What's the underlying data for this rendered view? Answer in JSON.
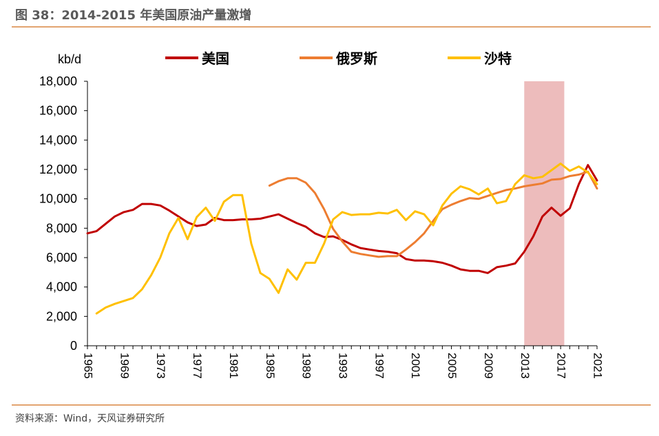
{
  "title": "图 38：2014-2015 年美国原油产量激增",
  "source": "资料来源：Wind，天风证券研究所",
  "chart_data": {
    "type": "line",
    "ylabel": "kb/d",
    "ylim": [
      0,
      18000
    ],
    "yticks": [
      0,
      2000,
      4000,
      6000,
      8000,
      10000,
      12000,
      14000,
      16000,
      18000
    ],
    "ytick_labels": [
      "0",
      "2,000",
      "4,000",
      "6,000",
      "8,000",
      "10,000",
      "12,000",
      "14,000",
      "16,000",
      "18,000"
    ],
    "xlim": [
      1965,
      2021
    ],
    "xticks": [
      1965,
      1969,
      1973,
      1977,
      1981,
      1985,
      1989,
      1993,
      1997,
      2001,
      2005,
      2009,
      2013,
      2017,
      2021
    ],
    "xtick_labels": [
      "1965",
      "1969",
      "1973",
      "1977",
      "1981",
      "1985",
      "1989",
      "1993",
      "1997",
      "2001",
      "2005",
      "2009",
      "2013",
      "2017",
      "2021"
    ],
    "shaded_range": [
      2013,
      2017.4
    ],
    "shade_color": "#EDBCBC",
    "series": [
      {
        "name": "美国",
        "color": "#C00000",
        "x": [
          1965,
          1966,
          1967,
          1968,
          1969,
          1970,
          1971,
          1972,
          1973,
          1974,
          1975,
          1976,
          1977,
          1978,
          1979,
          1980,
          1981,
          1982,
          1983,
          1984,
          1985,
          1986,
          1987,
          1988,
          1989,
          1990,
          1991,
          1992,
          1993,
          1994,
          1995,
          1996,
          1997,
          1998,
          1999,
          2000,
          2001,
          2002,
          2003,
          2004,
          2005,
          2006,
          2007,
          2008,
          2009,
          2010,
          2011,
          2012,
          2013,
          2014,
          2015,
          2016,
          2017,
          2018,
          2019,
          2020,
          2021
        ],
        "values": [
          7650,
          7800,
          8300,
          8800,
          9100,
          9250,
          9650,
          9650,
          9550,
          9200,
          8800,
          8400,
          8150,
          8250,
          8700,
          8550,
          8550,
          8600,
          8600,
          8650,
          8800,
          8950,
          8650,
          8350,
          8100,
          7650,
          7400,
          7450,
          7200,
          6900,
          6650,
          6550,
          6450,
          6400,
          6300,
          5900,
          5800,
          5800,
          5750,
          5650,
          5450,
          5200,
          5100,
          5100,
          4950,
          5350,
          5450,
          5600,
          6400,
          7450,
          8800,
          9400,
          8850,
          9350,
          11000,
          12300,
          11250
        ]
      },
      {
        "name": "俄罗斯",
        "color": "#ED7D31",
        "x": [
          1985,
          1986,
          1987,
          1988,
          1989,
          1990,
          1991,
          1992,
          1993,
          1994,
          1995,
          1996,
          1997,
          1998,
          1999,
          2000,
          2001,
          2002,
          2003,
          2004,
          2005,
          2006,
          2007,
          2008,
          2009,
          2010,
          2011,
          2012,
          2013,
          2014,
          2015,
          2016,
          2017,
          2018,
          2019,
          2020,
          2021
        ],
        "values": [
          10900,
          11200,
          11400,
          11400,
          11100,
          10400,
          9300,
          7950,
          7100,
          6400,
          6250,
          6150,
          6050,
          6100,
          6100,
          6550,
          7050,
          7650,
          8500,
          9300,
          9600,
          9850,
          10050,
          10000,
          10200,
          10400,
          10600,
          10700,
          10850,
          10950,
          11050,
          11300,
          11350,
          11550,
          11650,
          11850,
          10700
        ]
      },
      {
        "name": "沙特",
        "color": "#FFC000",
        "x": [
          1966,
          1967,
          1968,
          1969,
          1970,
          1971,
          1972,
          1973,
          1974,
          1975,
          1976,
          1977,
          1978,
          1979,
          1980,
          1981,
          1982,
          1983,
          1984,
          1985,
          1986,
          1987,
          1988,
          1989,
          1990,
          1991,
          1992,
          1993,
          1994,
          1995,
          1996,
          1997,
          1998,
          1999,
          2000,
          2001,
          2002,
          2003,
          2004,
          2005,
          2006,
          2007,
          2008,
          2009,
          2010,
          2011,
          2012,
          2013,
          2014,
          2015,
          2016,
          2017,
          2018,
          2019,
          2020,
          2021
        ],
        "values": [
          2200,
          2600,
          2850,
          3050,
          3250,
          3850,
          4800,
          6000,
          7650,
          8700,
          7250,
          8750,
          9400,
          8500,
          9800,
          10250,
          10250,
          6950,
          4950,
          4550,
          3600,
          5200,
          4500,
          5650,
          5650,
          6950,
          8600,
          9100,
          8900,
          8950,
          8950,
          9050,
          9000,
          9250,
          8550,
          9150,
          8950,
          8200,
          9550,
          10350,
          10850,
          10650,
          10300,
          10700,
          9700,
          9850,
          11000,
          11600,
          11400,
          11500,
          11950,
          12400,
          11900,
          12200,
          11800,
          11000
        ]
      }
    ]
  }
}
